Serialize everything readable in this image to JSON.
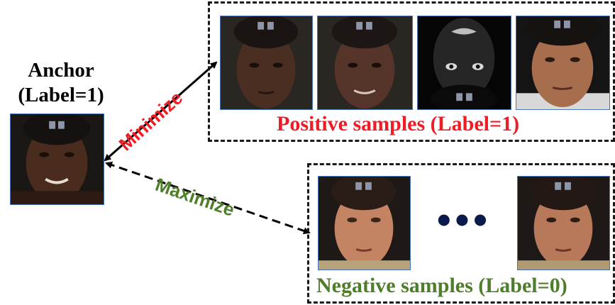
{
  "anchor": {
    "title_line1": "Anchor",
    "title_line2": "(Label=1)"
  },
  "edges": {
    "minimize": {
      "label": "Minimize",
      "color": "#ee1c25"
    },
    "maximize": {
      "label": "Maximize",
      "color": "#4e7e2a"
    }
  },
  "positive_group": {
    "caption": "Positive samples (Label=1)",
    "caption_color": "#ee1c25"
  },
  "negative_group": {
    "caption": "Negative samples (Label=0)",
    "caption_color": "#4e7e2a",
    "ellipsis": "•••"
  }
}
